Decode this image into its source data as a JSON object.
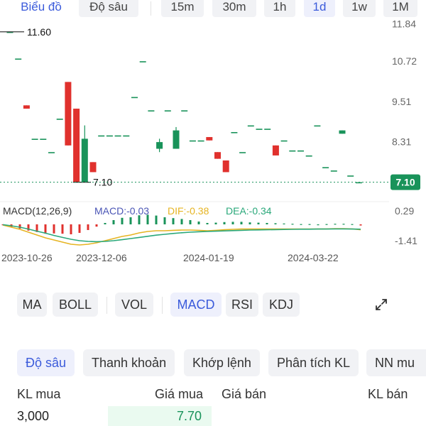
{
  "tabs": {
    "chart": "Biểu đồ",
    "depth": "Độ sâu",
    "intervals": [
      "15m",
      "30m",
      "1h",
      "1d",
      "1w",
      "1M"
    ],
    "selected_interval": "1d"
  },
  "chart_data": {
    "type": "candlestick",
    "y_ticks": [
      "11.84",
      "10.72",
      "9.51",
      "8.31"
    ],
    "ylim": [
      6.9,
      12.0
    ],
    "x_ticks": [
      "2023-10-26",
      "2023-12-06",
      "2024-01-19",
      "2024-03-22"
    ],
    "max_label": "11.60",
    "min_label": "7.10",
    "last_price": "7.10",
    "up_color": "#19935a",
    "down_color": "#e0312d",
    "candles": [
      {
        "o": 11.6,
        "h": 11.6,
        "c": 11.6,
        "l": 11.6
      },
      {
        "o": 10.8,
        "h": 10.8,
        "c": 10.8,
        "l": 10.8
      },
      {
        "o": 9.4,
        "h": 9.4,
        "c": 9.3,
        "l": 9.3
      },
      {
        "o": 8.4,
        "h": 8.4,
        "c": 8.4,
        "l": 8.4
      },
      {
        "o": 8.4,
        "h": 8.4,
        "c": 8.4,
        "l": 8.4
      },
      {
        "o": 8.0,
        "h": 8.0,
        "c": 8.0,
        "l": 8.0
      },
      {
        "o": 9.0,
        "h": 9.0,
        "c": 9.0,
        "l": 9.0
      },
      {
        "o": 10.1,
        "h": 10.1,
        "c": 8.2,
        "l": 8.2
      },
      {
        "o": 9.3,
        "h": 9.3,
        "c": 7.1,
        "l": 7.1
      },
      {
        "o": 7.1,
        "h": 8.8,
        "c": 8.4,
        "l": 7.1
      },
      {
        "o": 7.7,
        "h": 7.7,
        "c": 7.4,
        "l": 7.4
      },
      {
        "o": 8.5,
        "h": 8.5,
        "c": 8.5,
        "l": 8.5
      },
      {
        "o": 8.5,
        "h": 8.5,
        "c": 8.5,
        "l": 8.5
      },
      {
        "o": 8.5,
        "h": 8.5,
        "c": 8.5,
        "l": 8.5
      },
      {
        "o": 8.5,
        "h": 8.5,
        "c": 8.5,
        "l": 8.5
      },
      {
        "o": 9.65,
        "h": 9.65,
        "c": 9.65,
        "l": 9.65
      },
      {
        "o": 10.72,
        "h": 10.72,
        "c": 10.72,
        "l": 10.72
      },
      {
        "o": 9.25,
        "h": 9.25,
        "c": 9.25,
        "l": 9.25
      },
      {
        "o": 8.1,
        "h": 8.4,
        "c": 8.3,
        "l": 8.0
      },
      {
        "o": 9.25,
        "h": 9.25,
        "c": 9.25,
        "l": 9.25
      },
      {
        "o": 8.1,
        "h": 8.75,
        "c": 8.65,
        "l": 8.1
      },
      {
        "o": 9.25,
        "h": 9.25,
        "c": 9.25,
        "l": 9.25
      },
      {
        "o": 8.35,
        "h": 8.35,
        "c": 8.35,
        "l": 8.35
      },
      {
        "o": 8.35,
        "h": 8.35,
        "c": 8.35,
        "l": 8.35
      },
      {
        "o": 8.45,
        "h": 8.45,
        "c": 8.35,
        "l": 8.35
      },
      {
        "o": 8.0,
        "h": 8.0,
        "c": 7.8,
        "l": 7.8
      },
      {
        "o": 7.75,
        "h": 7.75,
        "c": 7.4,
        "l": 7.4
      },
      {
        "o": 8.6,
        "h": 8.6,
        "c": 8.6,
        "l": 8.6
      },
      {
        "o": 8.0,
        "h": 8.0,
        "c": 8.0,
        "l": 8.0
      },
      {
        "o": 8.8,
        "h": 8.8,
        "c": 8.8,
        "l": 8.8
      },
      {
        "o": 8.7,
        "h": 8.7,
        "c": 8.7,
        "l": 8.7
      },
      {
        "o": 8.7,
        "h": 8.7,
        "c": 8.7,
        "l": 8.7
      },
      {
        "o": 8.2,
        "h": 8.2,
        "c": 7.9,
        "l": 7.9
      },
      {
        "o": 8.35,
        "h": 8.35,
        "c": 8.35,
        "l": 8.35
      },
      {
        "o": 8.05,
        "h": 8.05,
        "c": 8.05,
        "l": 8.05
      },
      {
        "o": 8.05,
        "h": 8.05,
        "c": 8.05,
        "l": 8.05
      },
      {
        "o": 7.9,
        "h": 7.9,
        "c": 7.9,
        "l": 7.9
      },
      {
        "o": 8.8,
        "h": 8.8,
        "c": 8.8,
        "l": 8.8
      },
      {
        "o": 7.55,
        "h": 7.55,
        "c": 7.55,
        "l": 7.55
      },
      {
        "o": 7.45,
        "h": 7.45,
        "c": 7.45,
        "l": 7.45
      },
      {
        "o": 8.55,
        "h": 8.65,
        "c": 8.65,
        "l": 8.55
      },
      {
        "o": 7.3,
        "h": 7.3,
        "c": 7.3,
        "l": 7.3
      },
      {
        "o": 7.1,
        "h": 7.1,
        "c": 7.1,
        "l": 7.1
      }
    ],
    "macd": {
      "label": "MACD(12,26,9)",
      "macd_text": "MACD:-0.03",
      "dif_text": "DIF:-0.38",
      "dea_text": "DEA:-0.34",
      "y_ticks": [
        "0.29",
        "-1.41"
      ],
      "ylim": [
        -1.6,
        0.4
      ],
      "dif": [
        -0.05,
        -0.2,
        -0.35,
        -0.55,
        -0.75,
        -0.95,
        -1.1,
        -1.25,
        -1.4,
        -1.45,
        -1.4,
        -1.3,
        -1.15,
        -1.0,
        -0.85,
        -0.75,
        -0.6,
        -0.5,
        -0.45,
        -0.45,
        -0.42,
        -0.4,
        -0.4,
        -0.42,
        -0.45,
        -0.42,
        -0.38,
        -0.35,
        -0.33,
        -0.33,
        -0.33,
        -0.33,
        -0.33,
        -0.33,
        -0.33,
        -0.33,
        -0.33,
        -0.33,
        -0.32,
        -0.3,
        -0.3,
        -0.32,
        -0.38
      ],
      "dea": [
        -0.02,
        -0.1,
        -0.2,
        -0.33,
        -0.48,
        -0.62,
        -0.78,
        -0.92,
        -1.05,
        -1.15,
        -1.2,
        -1.22,
        -1.2,
        -1.15,
        -1.08,
        -1.0,
        -0.92,
        -0.84,
        -0.76,
        -0.7,
        -0.64,
        -0.59,
        -0.55,
        -0.52,
        -0.5,
        -0.48,
        -0.46,
        -0.44,
        -0.42,
        -0.4,
        -0.39,
        -0.38,
        -0.37,
        -0.36,
        -0.35,
        -0.34,
        -0.34,
        -0.33,
        -0.33,
        -0.32,
        -0.32,
        -0.33,
        -0.34
      ],
      "dif_color": "#e6b422",
      "dea_color": "#2aa87a"
    }
  },
  "indicators": [
    "MA",
    "BOLL",
    "VOL",
    "MACD",
    "RSI",
    "KDJ"
  ],
  "active_indicator": "MACD",
  "expand_icon": "expand-icon",
  "subtabs": [
    "Độ sâu",
    "Thanh khoản",
    "Khớp lệnh",
    "Phân tích KL",
    "NN mu"
  ],
  "orderbook": {
    "headers": {
      "bid_vol": "KL mua",
      "bid": "Giá mua",
      "ask": "Giá bán",
      "ask_vol": "KL bán"
    },
    "rows": [
      {
        "bid_vol": "3,000",
        "bid": "7.70"
      }
    ]
  },
  "colors": {
    "accent": "#3b5bdb",
    "up": "#19935a",
    "down": "#e0312d"
  }
}
